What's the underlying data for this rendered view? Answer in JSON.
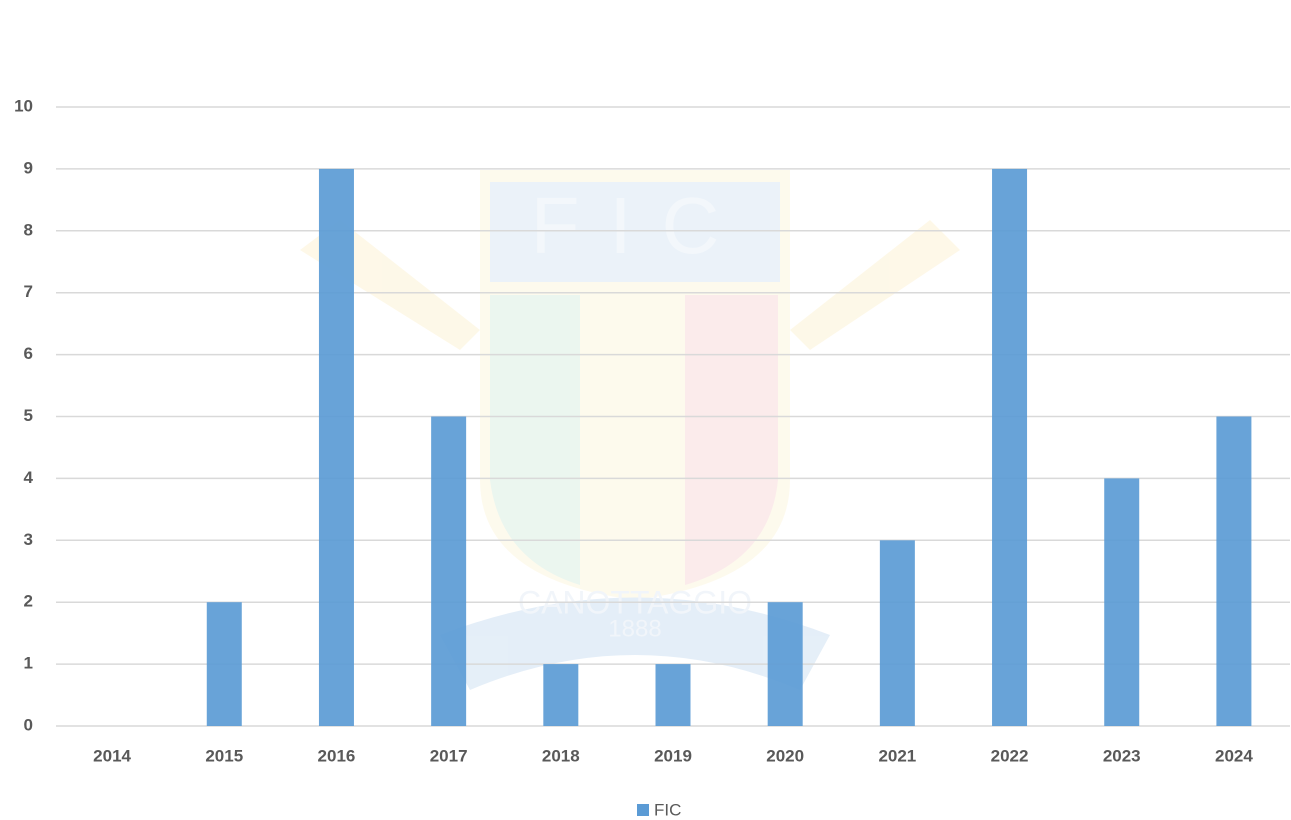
{
  "chart_data": {
    "type": "bar",
    "categories": [
      "2014",
      "2015",
      "2016",
      "2017",
      "2018",
      "2019",
      "2020",
      "2021",
      "2022",
      "2023",
      "2024"
    ],
    "series": [
      {
        "name": "FIC",
        "color": "#5b9bd5",
        "values": [
          0,
          2,
          9,
          5,
          1,
          1,
          2,
          3,
          9,
          4,
          5
        ]
      }
    ],
    "ylim": [
      0,
      10
    ],
    "yticks": [
      0,
      1,
      2,
      3,
      4,
      5,
      6,
      7,
      8,
      9,
      10
    ],
    "grid": true,
    "legend": "bottom",
    "watermark": {
      "title": "FIC",
      "text": "CANOTTAGGIO",
      "year": "1888"
    }
  }
}
